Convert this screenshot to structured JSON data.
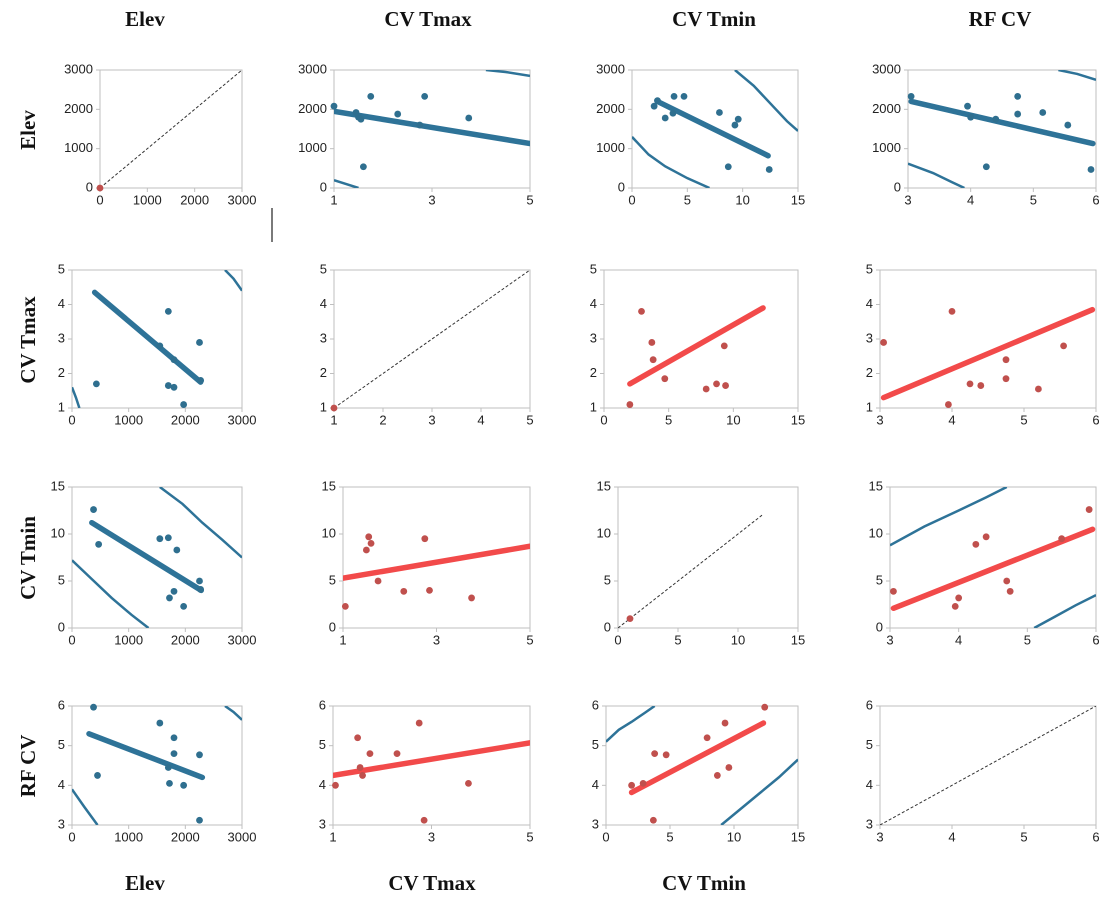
{
  "column_titles": [
    "Elev",
    "CV Tmax",
    "CV Tmin",
    "RF CV"
  ],
  "row_titles": [
    "Elev",
    "CV Tmax",
    "CV Tmin",
    "RF CV"
  ],
  "bottom_titles": [
    "Elev",
    "CV Tmax",
    "CV Tmin"
  ],
  "chart_data": [
    {
      "type": "scatter",
      "x": [
        0
      ],
      "y": [
        0
      ],
      "color": "#c0504d",
      "xlim": [
        0,
        3000
      ],
      "ylim": [
        0,
        3000
      ],
      "xticks": [
        0,
        1000,
        2000,
        3000
      ],
      "yticks": [
        0,
        1000,
        2000,
        3000
      ],
      "reference": {
        "x": [
          0,
          3000
        ],
        "y": [
          0,
          3000
        ]
      }
    },
    {
      "type": "scatter",
      "x": [
        1.0,
        1.45,
        1.5,
        1.55,
        1.6,
        1.75,
        2.3,
        2.75,
        2.85,
        3.75
      ],
      "y": [
        2080,
        1920,
        1800,
        1750,
        540,
        2330,
        1880,
        1600,
        2330,
        1780
      ],
      "color": "#2f6f8f",
      "xlim": [
        1,
        5
      ],
      "ylim": [
        0,
        3000
      ],
      "xticks": [
        1,
        3,
        5
      ],
      "yticks": [
        0,
        1000,
        2000,
        3000
      ],
      "fit": {
        "x": [
          1,
          5
        ],
        "y": [
          1950,
          1130
        ],
        "color": "#2e7398"
      },
      "ellipse_color": "#2e7398",
      "ellipse": [
        {
          "x": [
            1,
            1.25,
            1.5
          ],
          "y": [
            200,
            100,
            0
          ]
        },
        {
          "x": [
            4.1,
            4.5,
            5
          ],
          "y": [
            3000,
            2950,
            2850
          ]
        }
      ]
    },
    {
      "type": "scatter",
      "x": [
        2.0,
        2.3,
        3.0,
        3.7,
        3.8,
        4.7,
        7.9,
        8.7,
        9.3,
        9.6,
        12.4
      ],
      "y": [
        2080,
        2220,
        1780,
        1900,
        2330,
        2330,
        1920,
        540,
        1600,
        1750,
        470
      ],
      "color": "#2f6f8f",
      "xlim": [
        0,
        15
      ],
      "ylim": [
        0,
        3000
      ],
      "xticks": [
        0,
        5,
        10,
        15
      ],
      "yticks": [
        0,
        1000,
        2000,
        3000
      ],
      "fit": {
        "x": [
          2.3,
          12.3
        ],
        "y": [
          2200,
          820
        ],
        "color": "#2e7398"
      },
      "ellipse_color": "#2e7398",
      "ellipse": [
        {
          "x": [
            0,
            1.5,
            3,
            5,
            7
          ],
          "y": [
            1300,
            850,
            550,
            250,
            0
          ]
        },
        {
          "x": [
            9.3,
            11,
            12.5,
            14,
            15
          ],
          "y": [
            3000,
            2600,
            2150,
            1700,
            1450
          ]
        }
      ]
    },
    {
      "type": "scatter",
      "x": [
        3.05,
        3.95,
        4.0,
        4.25,
        4.4,
        4.75,
        4.75,
        5.15,
        5.55,
        5.92
      ],
      "y": [
        2330,
        2080,
        1800,
        540,
        1750,
        2330,
        1880,
        1920,
        1600,
        470
      ],
      "color": "#2f6f8f",
      "xlim": [
        3,
        6
      ],
      "ylim": [
        0,
        3000
      ],
      "xticks": [
        3,
        4,
        5,
        6
      ],
      "yticks": [
        0,
        1000,
        2000,
        3000
      ],
      "fit": {
        "x": [
          3.05,
          5.95
        ],
        "y": [
          2200,
          1130
        ],
        "color": "#2e7398"
      },
      "ellipse_color": "#2e7398",
      "ellipse": [
        {
          "x": [
            3,
            3.4,
            3.7,
            3.9
          ],
          "y": [
            620,
            380,
            150,
            0
          ]
        },
        {
          "x": [
            5.4,
            5.7,
            6
          ],
          "y": [
            3000,
            2900,
            2750
          ]
        }
      ]
    },
    {
      "type": "scatter",
      "x": [
        430,
        1550,
        1700,
        1700,
        1800,
        1800,
        1970,
        2250,
        2270
      ],
      "y": [
        1.7,
        2.8,
        3.8,
        1.65,
        1.6,
        2.4,
        1.1,
        2.9,
        1.8
      ],
      "color": "#2f6f8f",
      "xlim": [
        0,
        3000
      ],
      "ylim": [
        1,
        5
      ],
      "xticks": [
        0,
        1000,
        2000,
        3000
      ],
      "yticks": [
        1,
        2,
        3,
        4,
        5
      ],
      "fit": {
        "x": [
          400,
          2270
        ],
        "y": [
          4.35,
          1.75
        ],
        "color": "#2e7398"
      },
      "ellipse_color": "#2e7398",
      "ellipse": [
        {
          "x": [
            0,
            70,
            130
          ],
          "y": [
            1.6,
            1.3,
            1
          ]
        },
        {
          "x": [
            2700,
            2850,
            3000
          ],
          "y": [
            5,
            4.75,
            4.4
          ]
        }
      ]
    },
    {
      "type": "scatter",
      "x": [
        1
      ],
      "y": [
        1
      ],
      "color": "#c0504d",
      "xlim": [
        1,
        5
      ],
      "ylim": [
        1,
        5
      ],
      "xticks": [
        1,
        2,
        3,
        4,
        5
      ],
      "yticks": [
        1,
        2,
        3,
        4,
        5
      ],
      "reference": {
        "x": [
          1,
          5
        ],
        "y": [
          1,
          5
        ]
      }
    },
    {
      "type": "scatter",
      "x": [
        2.0,
        2.9,
        3.7,
        3.8,
        4.7,
        7.9,
        8.7,
        9.3,
        9.4
      ],
      "y": [
        1.1,
        3.8,
        2.9,
        2.4,
        1.85,
        1.55,
        1.7,
        2.8,
        1.65
      ],
      "color": "#c0504d",
      "xlim": [
        0,
        15
      ],
      "ylim": [
        1,
        5
      ],
      "xticks": [
        0,
        5,
        10,
        15
      ],
      "yticks": [
        1,
        2,
        3,
        4,
        5
      ],
      "fit": {
        "x": [
          2,
          12.3
        ],
        "y": [
          1.7,
          3.9
        ],
        "color": "#f24a4a"
      }
    },
    {
      "type": "scatter",
      "x": [
        3.05,
        3.95,
        4.0,
        4.25,
        4.4,
        4.75,
        4.75,
        5.2,
        5.55
      ],
      "y": [
        2.9,
        1.1,
        3.8,
        1.7,
        1.65,
        1.85,
        2.4,
        1.55,
        2.8
      ],
      "color": "#c0504d",
      "xlim": [
        3,
        6
      ],
      "ylim": [
        1,
        5
      ],
      "xticks": [
        3,
        4,
        5,
        6
      ],
      "yticks": [
        1,
        2,
        3,
        4,
        5
      ],
      "fit": {
        "x": [
          3.05,
          5.95
        ],
        "y": [
          1.3,
          3.85
        ],
        "color": "#f24a4a"
      }
    },
    {
      "type": "scatter",
      "x": [
        380,
        470,
        1550,
        1700,
        1720,
        1800,
        1850,
        1970,
        2250,
        2270
      ],
      "y": [
        12.6,
        8.9,
        9.5,
        9.6,
        3.2,
        3.9,
        8.3,
        2.3,
        5.0,
        4.1
      ],
      "color": "#2f6f8f",
      "xlim": [
        0,
        3000
      ],
      "ylim": [
        0,
        15
      ],
      "xticks": [
        0,
        1000,
        2000,
        3000
      ],
      "yticks": [
        0,
        5,
        10,
        15
      ],
      "fit": {
        "x": [
          350,
          2280
        ],
        "y": [
          11.2,
          4.0
        ],
        "color": "#2e7398"
      },
      "ellipse_color": "#2e7398",
      "ellipse": [
        {
          "x": [
            0,
            350,
            700,
            1050,
            1350
          ],
          "y": [
            7.2,
            5.2,
            3.2,
            1.4,
            0
          ]
        },
        {
          "x": [
            1550,
            1950,
            2300,
            2650,
            3000
          ],
          "y": [
            15,
            13.2,
            11.2,
            9.4,
            7.5
          ]
        }
      ]
    },
    {
      "type": "scatter",
      "x": [
        1.05,
        1.5,
        1.6,
        1.75,
        2.3,
        2.75,
        2.85,
        3.75,
        1.55
      ],
      "y": [
        2.3,
        8.3,
        9.0,
        5.0,
        3.9,
        9.5,
        4.0,
        3.2,
        9.7
      ],
      "color": "#c0504d",
      "xlim": [
        1,
        5
      ],
      "ylim": [
        0,
        15
      ],
      "xticks": [
        1,
        3,
        5
      ],
      "yticks": [
        0,
        5,
        10,
        15
      ],
      "fit": {
        "x": [
          1,
          5
        ],
        "y": [
          5.3,
          8.7
        ],
        "color": "#f24a4a"
      }
    },
    {
      "type": "scatter",
      "x": [
        1
      ],
      "y": [
        1
      ],
      "color": "#c0504d",
      "xlim": [
        0,
        15
      ],
      "ylim": [
        0,
        15
      ],
      "xticks": [
        0,
        5,
        10,
        15
      ],
      "yticks": [
        0,
        5,
        10,
        15
      ],
      "reference": {
        "x": [
          0,
          12
        ],
        "y": [
          0,
          12
        ]
      }
    },
    {
      "type": "scatter",
      "x": [
        3.05,
        3.95,
        4.0,
        4.25,
        4.4,
        4.7,
        4.75,
        5.5,
        5.9
      ],
      "y": [
        3.9,
        2.3,
        3.2,
        8.9,
        9.7,
        5.0,
        3.9,
        9.5,
        12.6
      ],
      "color": "#c0504d",
      "xlim": [
        3,
        6
      ],
      "ylim": [
        0,
        15
      ],
      "xticks": [
        3,
        4,
        5,
        6
      ],
      "yticks": [
        0,
        5,
        10,
        15
      ],
      "fit": {
        "x": [
          3.05,
          5.95
        ],
        "y": [
          2.1,
          10.5
        ],
        "color": "#f24a4a"
      },
      "ellipse_color": "#2e7398",
      "ellipse": [
        {
          "x": [
            3,
            3.5,
            4,
            4.4,
            4.7
          ],
          "y": [
            8.8,
            10.8,
            12.5,
            13.9,
            15
          ]
        },
        {
          "x": [
            5.1,
            5.4,
            5.7,
            6
          ],
          "y": [
            0,
            1.2,
            2.4,
            3.5
          ]
        }
      ]
    },
    {
      "type": "scatter",
      "x": [
        380,
        450,
        1550,
        1700,
        1720,
        1800,
        1800,
        1970,
        2250,
        2250
      ],
      "y": [
        5.97,
        4.25,
        5.57,
        4.45,
        4.05,
        5.2,
        4.8,
        4.0,
        4.77,
        3.12
      ],
      "color": "#2f6f8f",
      "xlim": [
        0,
        3000
      ],
      "ylim": [
        3,
        6
      ],
      "xticks": [
        0,
        1000,
        2000,
        3000
      ],
      "yticks": [
        3,
        4,
        5,
        6
      ],
      "fit": {
        "x": [
          300,
          2300
        ],
        "y": [
          5.3,
          4.2
        ],
        "color": "#2e7398"
      },
      "ellipse_color": "#2e7398",
      "ellipse": [
        {
          "x": [
            0,
            220,
            450
          ],
          "y": [
            3.9,
            3.45,
            3
          ]
        },
        {
          "x": [
            2700,
            2850,
            3000
          ],
          "y": [
            6,
            5.85,
            5.65
          ]
        }
      ]
    },
    {
      "type": "scatter",
      "x": [
        1.05,
        1.5,
        1.55,
        1.6,
        1.75,
        2.3,
        2.75,
        2.85,
        3.75
      ],
      "y": [
        4.0,
        5.2,
        4.45,
        4.25,
        4.8,
        4.8,
        5.57,
        3.12,
        4.05
      ],
      "color": "#c0504d",
      "xlim": [
        1,
        5
      ],
      "ylim": [
        3,
        6
      ],
      "xticks": [
        1,
        3,
        5
      ],
      "yticks": [
        3,
        4,
        5,
        6
      ],
      "fit": {
        "x": [
          1,
          5
        ],
        "y": [
          4.25,
          5.07
        ],
        "color": "#f24a4a"
      }
    },
    {
      "type": "scatter",
      "x": [
        2.0,
        2.9,
        3.7,
        3.8,
        4.7,
        7.9,
        8.7,
        9.3,
        9.6,
        12.4
      ],
      "y": [
        4.0,
        4.05,
        3.12,
        4.8,
        4.77,
        5.2,
        4.25,
        5.57,
        4.45,
        5.97
      ],
      "color": "#c0504d",
      "xlim": [
        0,
        15
      ],
      "ylim": [
        3,
        6
      ],
      "xticks": [
        0,
        5,
        10,
        15
      ],
      "yticks": [
        3,
        4,
        5,
        6
      ],
      "fit": {
        "x": [
          2,
          12.3
        ],
        "y": [
          3.82,
          5.57
        ],
        "color": "#f24a4a"
      },
      "ellipse_color": "#2e7398",
      "ellipse": [
        {
          "x": [
            0,
            1,
            2,
            3,
            3.8
          ],
          "y": [
            5.1,
            5.4,
            5.6,
            5.82,
            6
          ]
        },
        {
          "x": [
            9,
            10.5,
            12,
            13.5,
            15
          ],
          "y": [
            3,
            3.4,
            3.8,
            4.2,
            4.65
          ]
        }
      ]
    },
    {
      "type": "scatter",
      "xlim": [
        3,
        6
      ],
      "ylim": [
        3,
        6
      ],
      "xticks": [
        3,
        4,
        5,
        6
      ],
      "yticks": [
        3,
        4,
        5,
        6
      ],
      "reference": {
        "x": [
          3,
          6
        ],
        "y": [
          3,
          6
        ]
      }
    }
  ]
}
